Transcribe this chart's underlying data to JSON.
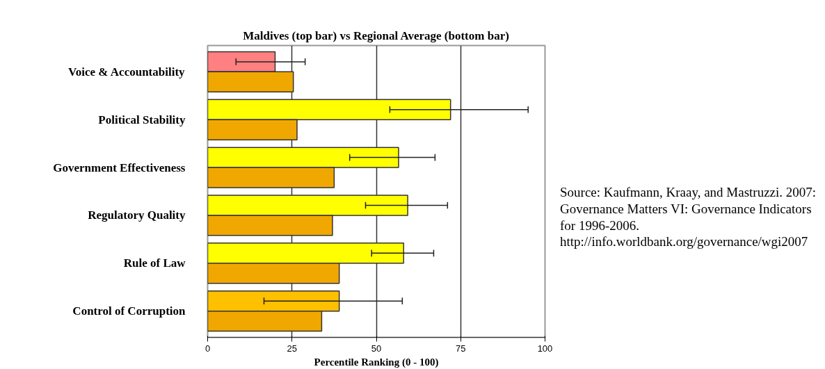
{
  "chart_data": {
    "type": "bar",
    "orientation": "horizontal",
    "title": "Maldives (top bar) vs Regional Average (bottom bar)",
    "xlabel": "Percentile Ranking (0 - 100)",
    "categories": [
      "Voice & Accountability",
      "Political Stability",
      "Government Effectiveness",
      "Regulatory Quality",
      "Rule of Law",
      "Control of Corruption"
    ],
    "series": [
      {
        "colors": [
          "#ff8080",
          "#ffff00",
          "#ffff00",
          "#ffff00",
          "#ffff00",
          "#ffc000"
        ],
        "values": [
          20.0,
          72.0,
          56.6,
          59.3,
          58.1,
          39.0
        ],
        "errors": [
          [
            8.4,
            28.9
          ],
          [
            54.0,
            95.0
          ],
          [
            42.1,
            67.4
          ],
          [
            46.8,
            71.1
          ],
          [
            48.6,
            67.0
          ],
          [
            16.7,
            57.7
          ]
        ]
      },
      {
        "color": "#f0a800",
        "values": [
          25.4,
          26.5,
          37.5,
          37.0,
          39.0,
          33.8
        ]
      }
    ],
    "xlim": [
      0,
      100
    ],
    "xticks": [
      0,
      25,
      50,
      75,
      100
    ],
    "grid": "x",
    "annotations": [
      "Source: Kaufmann, Kraay, and Mastruzzi. 2007: Governance Matters VI: Governance Indicators for 1996-2006. http://info.worldbank.org/governance/wgi2007"
    ]
  }
}
